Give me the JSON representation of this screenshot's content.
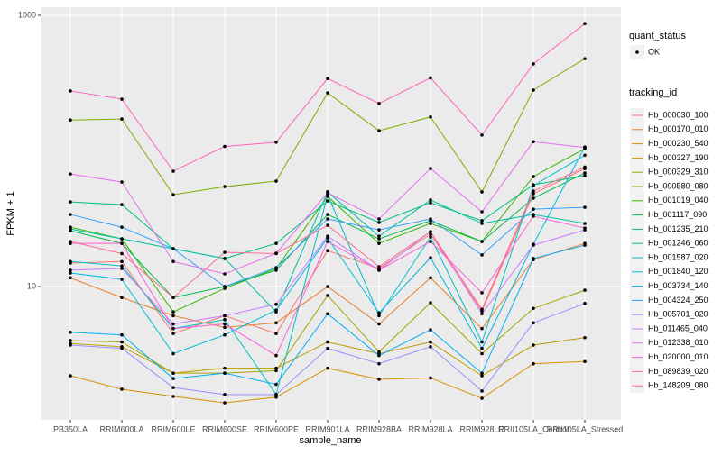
{
  "chart_data": {
    "type": "line",
    "log_scale": true,
    "grid": true,
    "x_label": "sample_name",
    "y_label": "FPKM + 1",
    "ylim": [
      1.04,
      1148
    ],
    "yticks": [
      10,
      1000
    ],
    "categories": [
      "PB350LA",
      "RRIM600LA",
      "RRIM600LE",
      "RRIM600SE",
      "RRIM600PE",
      "RRIM901LA",
      "RRIM928BA",
      "RRIM928LA",
      "RRIM928LE",
      "RRII105LA_Control",
      "RRII105LA_Stressed"
    ],
    "point_legend_title": "quant_status",
    "point_legend_label": "OK",
    "legend_title": "tracking_id",
    "series": [
      {
        "name": "Hb_000030_100",
        "color": "#F8766D",
        "values": [
          14.9,
          15.3,
          4.5,
          6.1,
          4.5,
          18.4,
          13.6,
          24.3,
          6.6,
          48.4,
          74
        ]
      },
      {
        "name": "Hb_000170_010",
        "color": "#EA8331",
        "values": [
          11.6,
          8.3,
          6.1,
          5.0,
          5.4,
          10,
          5.3,
          11.6,
          4.9,
          15.8,
          20.8
        ]
      },
      {
        "name": "Hb_000230_540",
        "color": "#D89000",
        "values": [
          2.2,
          1.75,
          1.55,
          1.39,
          1.53,
          2.5,
          2.07,
          2.12,
          1.5,
          2.7,
          2.8
        ]
      },
      {
        "name": "Hb_000327_190",
        "color": "#C09B00",
        "values": [
          3.8,
          3.6,
          2.3,
          2.5,
          2.5,
          3.9,
          3.2,
          3.9,
          2.2,
          3.7,
          4.2
        ]
      },
      {
        "name": "Hb_000329_310",
        "color": "#A3A500",
        "values": [
          4.0,
          3.9,
          2.3,
          2.3,
          2.4,
          8.6,
          3.3,
          7.6,
          3.2,
          6.9,
          9.4
        ]
      },
      {
        "name": "Hb_000580_080",
        "color": "#7CAE00",
        "values": [
          169,
          172,
          47.6,
          54.6,
          59.9,
          268,
          141,
          178,
          49.9,
          281,
          479
        ]
      },
      {
        "name": "Hb_001019_040",
        "color": "#39B600",
        "values": [
          27.4,
          22.5,
          6.5,
          9.7,
          13.6,
          46.2,
          20.8,
          29.2,
          21.5,
          64.7,
          104
        ]
      },
      {
        "name": "Hb_001117_090",
        "color": "#00BB4E",
        "values": [
          25.8,
          20.8,
          8.3,
          10,
          13.2,
          34.0,
          22.5,
          30.6,
          21.5,
          44.8,
          68.7
        ]
      },
      {
        "name": "Hb_001235_210",
        "color": "#00BF7D",
        "values": [
          42.1,
          40.2,
          19.0,
          16.1,
          20.8,
          42.8,
          29.7,
          41.5,
          30.6,
          56.3,
          65.7
        ]
      },
      {
        "name": "Hb_001246_060",
        "color": "#00C1A3",
        "values": [
          26.6,
          22.5,
          19.0,
          16.1,
          6.5,
          50,
          23.5,
          43.5,
          29.2,
          34,
          29.2
        ]
      },
      {
        "name": "Hb_001587_020",
        "color": "#00BFC4",
        "values": [
          15.3,
          14.2,
          4.9,
          5.7,
          1.6,
          47.6,
          6.1,
          23.2,
          3.9,
          55.5,
          93
        ]
      },
      {
        "name": "Hb_001840_120",
        "color": "#00BAE0",
        "values": [
          12.6,
          11.3,
          3.2,
          4.4,
          6.7,
          22.8,
          6.4,
          16.3,
          3.5,
          20.5,
          107
        ]
      },
      {
        "name": "Hb_003734_140",
        "color": "#00B0F6",
        "values": [
          4.6,
          4.4,
          2.1,
          2.3,
          1.9,
          6.3,
          3.1,
          4.8,
          2.3,
          16.1,
          20.2
        ]
      },
      {
        "name": "Hb_004324_250",
        "color": "#35A2FF",
        "values": [
          34.0,
          27.4,
          19.0,
          10,
          13.8,
          31.5,
          26.2,
          31.5,
          17.1,
          37.2,
          38.4
        ]
      },
      {
        "name": "Hb_005701_020",
        "color": "#9590FF",
        "values": [
          3.7,
          3.5,
          1.8,
          1.6,
          1.6,
          3.5,
          2.7,
          3.6,
          1.7,
          5.4,
          7.5
        ]
      },
      {
        "name": "Hb_011465_040",
        "color": "#C77CFF",
        "values": [
          13.2,
          13.6,
          5.3,
          6.1,
          7.4,
          23.5,
          13.2,
          25.4,
          6.3,
          20.2,
          26.2
        ]
      },
      {
        "name": "Hb_012338_010",
        "color": "#E76BF3",
        "values": [
          67.6,
          59,
          15.3,
          12.4,
          17.6,
          49.2,
          31.5,
          74.2,
          35.6,
          117,
          106
        ]
      },
      {
        "name": "Hb_020000_010",
        "color": "#FA62DB",
        "values": [
          20.8,
          20.8,
          4.9,
          5.3,
          3.1,
          21.5,
          13.2,
          21.5,
          9,
          33,
          27
        ]
      },
      {
        "name": "Hb_089839_020",
        "color": "#FF62BC",
        "values": [
          277,
          241,
          70.9,
          108,
          116,
          342,
          224,
          346,
          131,
          438,
          869
        ]
      },
      {
        "name": "Hb_148209_080",
        "color": "#FF6C91",
        "values": [
          21.5,
          17.5,
          8.3,
          17.9,
          17.5,
          28.3,
          14.0,
          25.4,
          6.8,
          50.6,
          76
        ]
      }
    ]
  }
}
